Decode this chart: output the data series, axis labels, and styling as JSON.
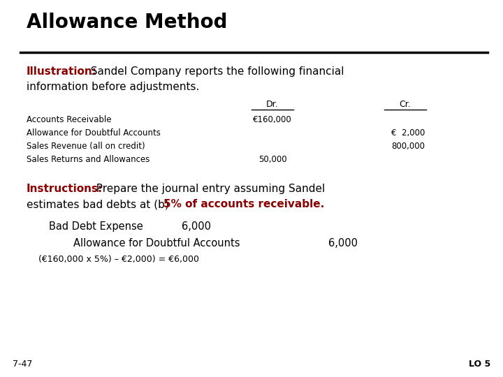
{
  "title": "Allowance Method",
  "bg_color": "#ffffff",
  "title_color": "#000000",
  "illustration_label": "Illustration:",
  "illus_rest_line1": "  Sandel Company reports the following financial",
  "illus_line2": "information before adjustments.",
  "illustration_color": "#8B0000",
  "dr_header": "Dr.",
  "cr_header": "Cr.",
  "table_rows": [
    [
      "Accounts Receivable",
      "€160,000",
      ""
    ],
    [
      "Allowance for Doubtful Accounts",
      "",
      "€  2,000"
    ],
    [
      "Sales Revenue (all on credit)",
      "",
      "800,000"
    ],
    [
      "Sales Returns and Allowances",
      "50,000",
      ""
    ]
  ],
  "instructions_label": "Instructions:",
  "inst_rest_line1": "  Prepare the journal entry assuming Sandel",
  "inst_line2_normal": "estimates bad debts at (b) ",
  "inst_line2_bold": "5% of accounts receivable.",
  "instructions_color": "#8B0000",
  "highlight_color": "#8B0000",
  "je_line1_account": "Bad Debt Expense",
  "je_line1_dr": "6,000",
  "je_line2_account": "Allowance for Doubtful Accounts",
  "je_line2_cr": "6,000",
  "formula": "(€160,000 x 5%) – €2,000) = €6,000",
  "footer_left": "7-47",
  "footer_right": "LO 5",
  "title_fontsize": 20,
  "body_fontsize": 11,
  "small_fontsize": 9,
  "table_fontsize": 9,
  "je_fontsize": 10.5
}
